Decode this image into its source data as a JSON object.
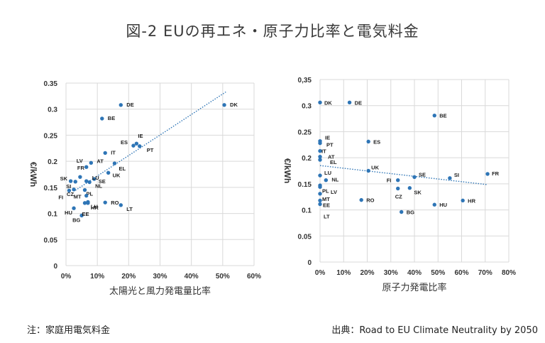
{
  "title": "図-2 EUの再エネ・原子力比率と電気料金",
  "note": "注：家庭用電気料金",
  "source": "出典：Road to EU Climate Neutrality by 2050",
  "chart_data": [
    {
      "type": "scatter",
      "xlabel": "太陽光と風力発電量比率",
      "ylabel": "€/kWh",
      "xlim": [
        0,
        60
      ],
      "ylim": [
        0,
        0.35
      ],
      "x_ticks": [
        "0%",
        "10%",
        "20%",
        "30%",
        "40%",
        "50%",
        "60%"
      ],
      "y_ticks": [
        "0",
        "0.05",
        "0.1",
        "0.15",
        "0.2",
        "0.25",
        "0.3",
        "0.35"
      ],
      "trendline": "linear, dotted",
      "points": [
        {
          "label": "DE",
          "x": 17.5,
          "y": 0.308
        },
        {
          "label": "DK",
          "x": 50.5,
          "y": 0.308
        },
        {
          "label": "BE",
          "x": 11.5,
          "y": 0.282
        },
        {
          "label": "IE",
          "x": 22.5,
          "y": 0.234
        },
        {
          "label": "ES",
          "x": 21.5,
          "y": 0.23
        },
        {
          "label": "PT",
          "x": 23.5,
          "y": 0.229
        },
        {
          "label": "FR",
          "x": 4.5,
          "y": 0.17
        },
        {
          "label": "IT",
          "x": 12.5,
          "y": 0.216
        },
        {
          "label": "AT",
          "x": 8.0,
          "y": 0.197
        },
        {
          "label": "EL",
          "x": 15.5,
          "y": 0.196
        },
        {
          "label": "LV",
          "x": 6.5,
          "y": 0.189
        },
        {
          "label": "UK",
          "x": 13.5,
          "y": 0.178
        },
        {
          "label": "SE",
          "x": 9.0,
          "y": 0.166
        },
        {
          "label": "SK",
          "x": 1.5,
          "y": 0.162
        },
        {
          "label": "SI",
          "x": 3.0,
          "y": 0.161
        },
        {
          "label": "LU",
          "x": 6.5,
          "y": 0.162
        },
        {
          "label": "NL",
          "x": 7.5,
          "y": 0.16
        },
        {
          "label": "CZ",
          "x": 2.5,
          "y": 0.146
        },
        {
          "label": "PL",
          "x": 6.0,
          "y": 0.145
        },
        {
          "label": "FI",
          "x": 1.0,
          "y": 0.144
        },
        {
          "label": "MT",
          "x": 6.5,
          "y": 0.134
        },
        {
          "label": "LU",
          "x": 7.0,
          "y": 0.122
        },
        {
          "label": "RO",
          "x": 12.5,
          "y": 0.121
        },
        {
          "label": "LT",
          "x": 17.5,
          "y": 0.116
        },
        {
          "label": "HU",
          "x": 2.5,
          "y": 0.11
        },
        {
          "label": "HR",
          "x": 7.0,
          "y": 0.12
        },
        {
          "label": "BG",
          "x": 5.0,
          "y": 0.096
        },
        {
          "label": "EE",
          "x": 6.0,
          "y": 0.12
        }
      ]
    },
    {
      "type": "scatter",
      "xlabel": "原子力発電比率",
      "ylabel": "€/kWh",
      "xlim": [
        0,
        80
      ],
      "ylim": [
        0,
        0.35
      ],
      "x_ticks": [
        "0%",
        "10%",
        "20%",
        "30%",
        "40%",
        "50%",
        "60%",
        "70%",
        "80%"
      ],
      "y_ticks": [
        "0",
        "0.05",
        "0.1",
        "0.15",
        "0.2",
        "0.25",
        "0.3",
        "0,35"
      ],
      "trendline": "linear, dotted",
      "points": [
        {
          "label": "DK",
          "x": 0,
          "y": 0.306
        },
        {
          "label": "DE",
          "x": 12.5,
          "y": 0.306
        },
        {
          "label": "BE",
          "x": 48.5,
          "y": 0.281
        },
        {
          "label": "IE",
          "x": 0,
          "y": 0.232
        },
        {
          "label": "PT",
          "x": 0,
          "y": 0.228
        },
        {
          "label": "ES",
          "x": 20.5,
          "y": 0.231
        },
        {
          "label": "IT",
          "x": 0,
          "y": 0.213
        },
        {
          "label": "AT",
          "x": 0,
          "y": 0.202
        },
        {
          "label": "EL",
          "x": 0,
          "y": 0.196
        },
        {
          "label": "UK",
          "x": 20.5,
          "y": 0.175
        },
        {
          "label": "LU",
          "x": 0,
          "y": 0.166
        },
        {
          "label": "NL",
          "x": 2.5,
          "y": 0.157
        },
        {
          "label": "SE",
          "x": 40.0,
          "y": 0.163
        },
        {
          "label": "SI",
          "x": 55.0,
          "y": 0.161
        },
        {
          "label": "FR",
          "x": 71.0,
          "y": 0.169
        },
        {
          "label": "FI",
          "x": 33.0,
          "y": 0.157
        },
        {
          "label": "LV",
          "x": 0,
          "y": 0.147
        },
        {
          "label": "PL",
          "x": 0,
          "y": 0.144
        },
        {
          "label": "CZ",
          "x": 33.0,
          "y": 0.141
        },
        {
          "label": "SK",
          "x": 38.0,
          "y": 0.142
        },
        {
          "label": "MT",
          "x": 0,
          "y": 0.131
        },
        {
          "label": "RO",
          "x": 17.5,
          "y": 0.119
        },
        {
          "label": "EE",
          "x": 0,
          "y": 0.118
        },
        {
          "label": "HR",
          "x": 60.5,
          "y": 0.118
        },
        {
          "label": "HU",
          "x": 48.5,
          "y": 0.11
        },
        {
          "label": "LT",
          "x": 0,
          "y": 0.111
        },
        {
          "label": "BG",
          "x": 34.5,
          "y": 0.096
        }
      ]
    }
  ]
}
